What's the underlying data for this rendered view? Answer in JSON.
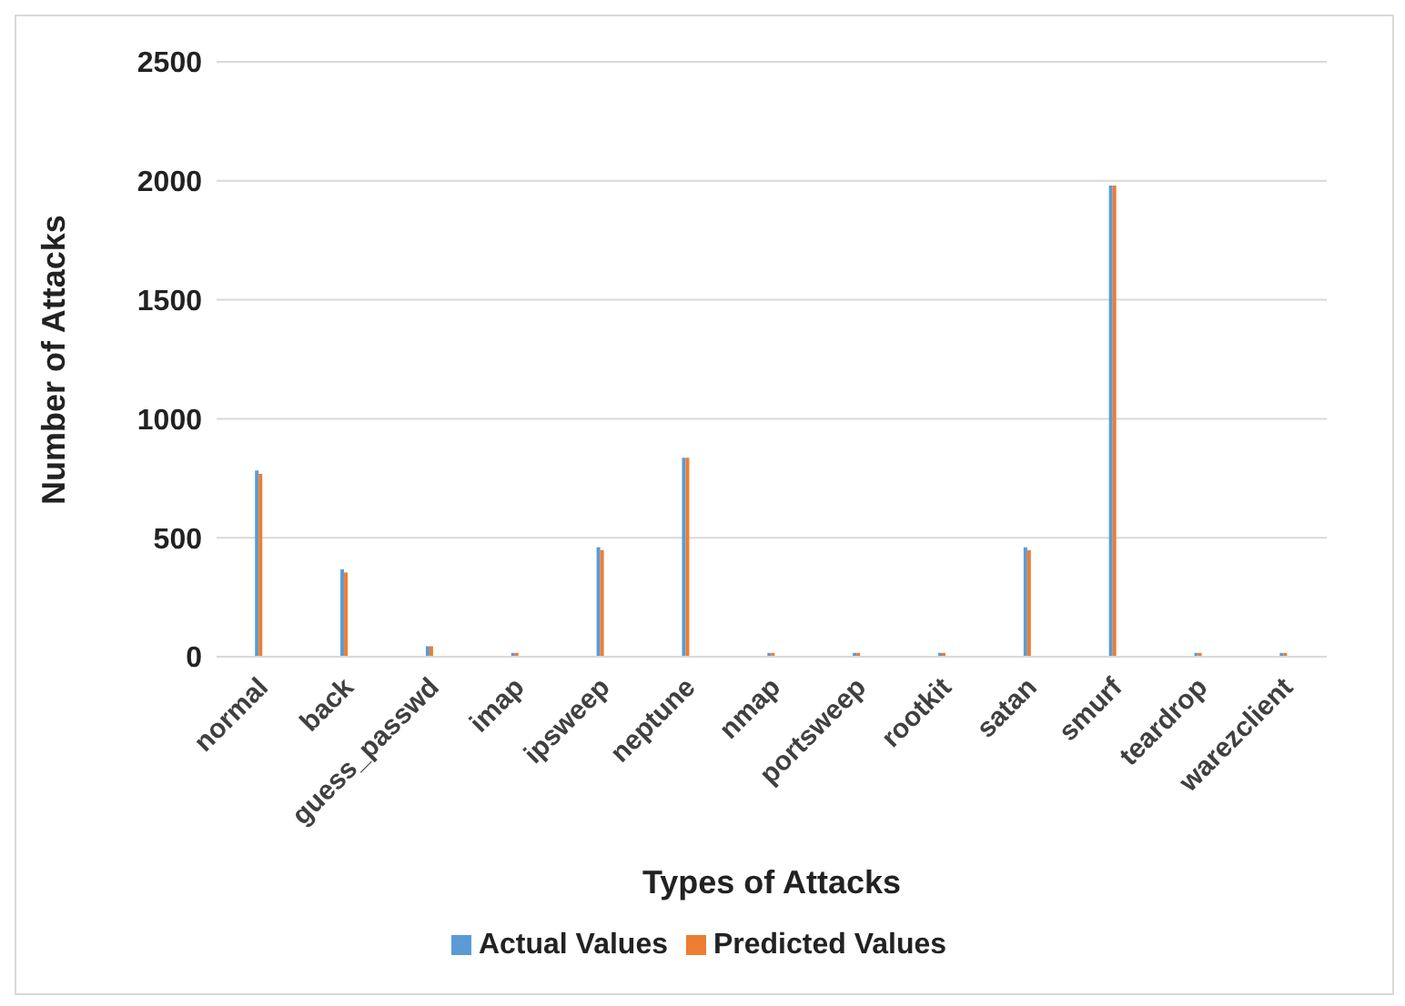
{
  "chart_data": {
    "type": "bar",
    "xlabel": "Types of Attacks",
    "ylabel": "Number of Attacks",
    "categories": [
      "normal",
      "back",
      "guess_passwd",
      "imap",
      "ipsweep",
      "neptune",
      "nmap",
      "portsweep",
      "rootkit",
      "satan",
      "smurf",
      "teardrop",
      "warezclient"
    ],
    "series": [
      {
        "name": "Actual Values",
        "color": "#5b9bd5",
        "values": [
          783,
          367,
          44,
          16,
          460,
          836,
          16,
          16,
          16,
          460,
          1980,
          16,
          16
        ]
      },
      {
        "name": "Predicted Values",
        "color": "#ed7d31",
        "values": [
          768,
          354,
          44,
          16,
          448,
          836,
          16,
          16,
          16,
          448,
          1980,
          16,
          16
        ]
      }
    ],
    "ylim": [
      0,
      2500
    ],
    "yticks": [
      0,
      500,
      1000,
      1500,
      2000,
      2500
    ],
    "grid": "y",
    "legend": "bottom"
  }
}
